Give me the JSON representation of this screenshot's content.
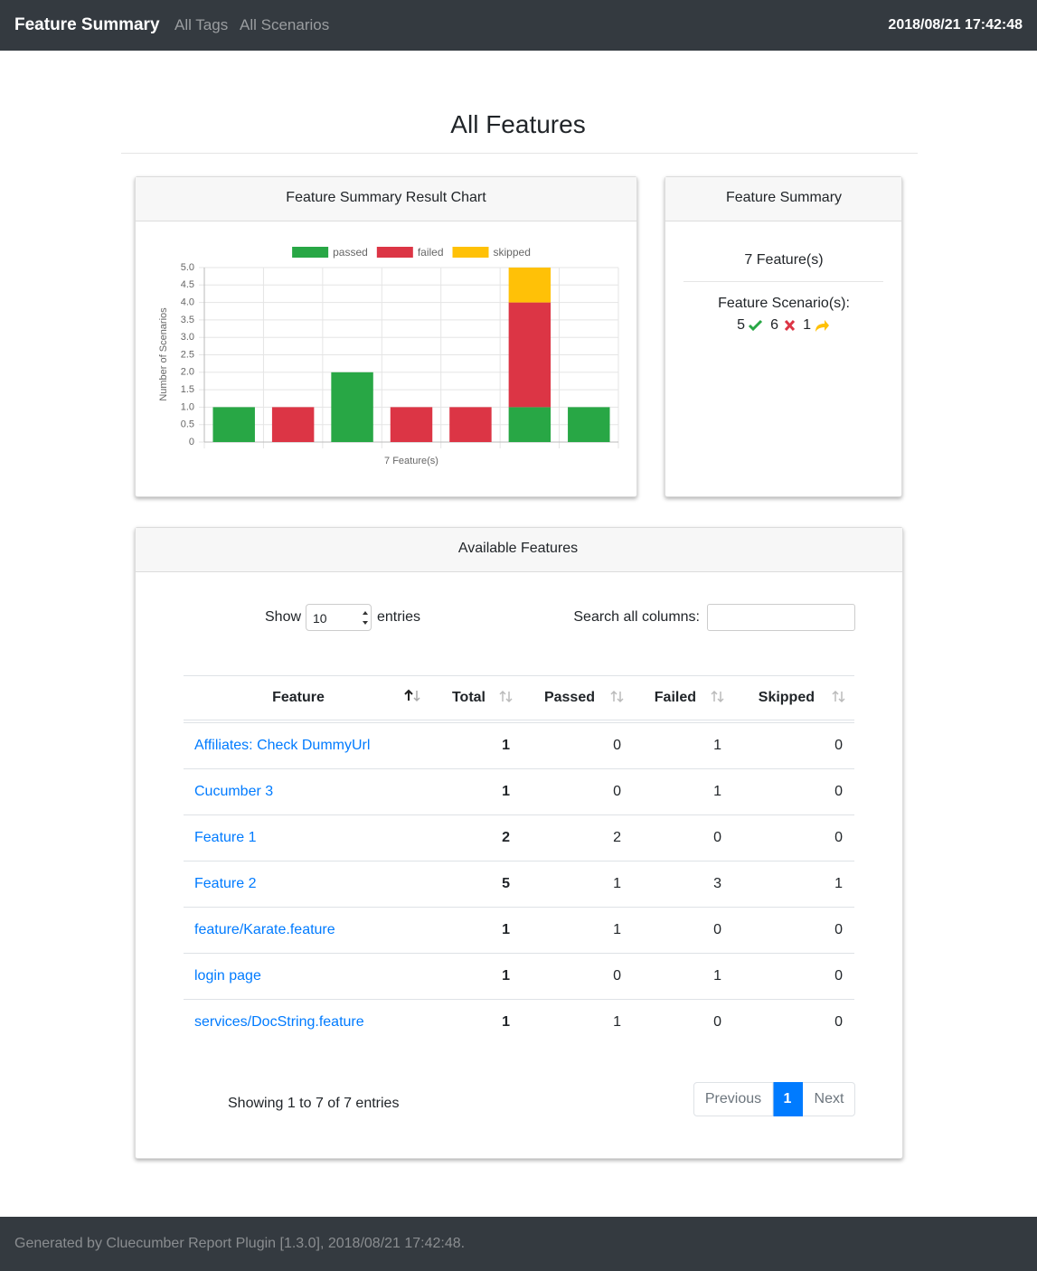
{
  "navbar": {
    "brand": "Feature Summary",
    "links": [
      "All Tags",
      "All Scenarios"
    ],
    "timestamp": "2018/08/21 17:42:48"
  },
  "page_title": "All Features",
  "chart_card": {
    "title": "Feature Summary Result Chart"
  },
  "chart_data": {
    "type": "bar",
    "stacked": true,
    "x_label": "7 Feature(s)",
    "y_label": "Number of Scenarios",
    "categories": [
      null,
      null,
      null,
      null,
      null,
      null,
      null
    ],
    "series": [
      {
        "name": "passed",
        "color": "#28a745",
        "values": [
          1,
          0,
          2,
          0,
          0,
          1,
          1
        ]
      },
      {
        "name": "failed",
        "color": "#dc3545",
        "values": [
          0,
          1,
          0,
          1,
          1,
          3,
          0
        ]
      },
      {
        "name": "skipped",
        "color": "#ffc107",
        "values": [
          0,
          0,
          0,
          0,
          0,
          1,
          0
        ]
      }
    ],
    "ylim": [
      0,
      5
    ],
    "yticks": [
      0,
      0.5,
      {
        "value": 1,
        "label": "1.0"
      },
      1.5,
      {
        "value": 2,
        "label": "2.0"
      },
      2.5,
      {
        "value": 3,
        "label": "3.0"
      },
      3.5,
      {
        "value": 4,
        "label": "4.0"
      },
      4.5,
      {
        "value": 5,
        "label": "5.0"
      }
    ],
    "grid": true,
    "legend": "top"
  },
  "summary_card": {
    "title": "Feature Summary",
    "feature_count": "7 Feature(s)",
    "scenario_label": "Feature Scenario(s):",
    "passed": 5,
    "failed": 6,
    "skipped": 1
  },
  "table_card": {
    "title": "Available Features",
    "show": "Show",
    "length": 10,
    "entries": "entries",
    "search_label": "Search all columns:",
    "columns": [
      "Feature",
      "Total",
      "Passed",
      "Failed",
      "Skipped"
    ],
    "rows": [
      [
        "Affiliates: Check DummyUrl",
        1,
        0,
        1,
        0
      ],
      [
        "Cucumber 3",
        1,
        0,
        1,
        0
      ],
      [
        "Feature 1",
        2,
        2,
        0,
        0
      ],
      [
        "Feature 2",
        5,
        1,
        3,
        1
      ],
      [
        "feature/Karate.feature",
        1,
        1,
        0,
        0
      ],
      [
        "login page",
        1,
        0,
        1,
        0
      ],
      [
        "services/DocString.feature",
        1,
        1,
        0,
        0
      ]
    ],
    "info": "Showing 1 to 7 of 7 entries",
    "pagination": [
      "Previous",
      1,
      "Next"
    ]
  },
  "footer": "Generated by Cluecumber Report Plugin [1.3.0], 2018/08/21 17:42:48."
}
